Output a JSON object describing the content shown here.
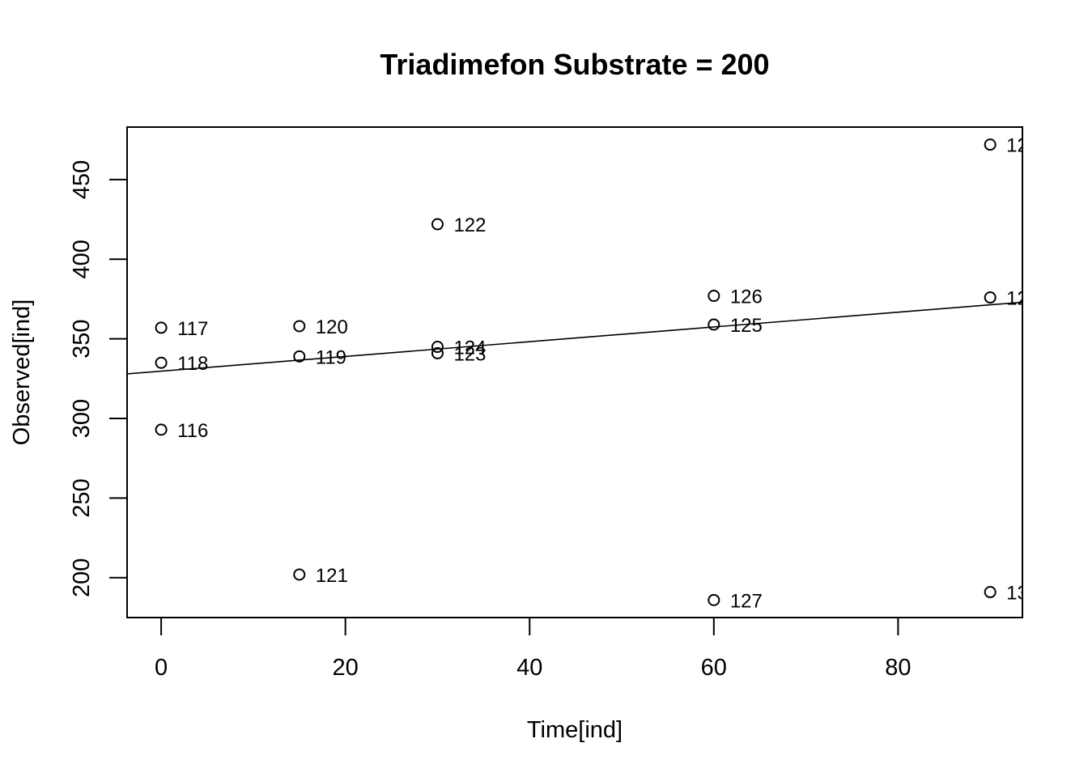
{
  "chart_data": {
    "type": "scatter",
    "title": "Triadimefon Substrate = 200",
    "xlabel": "Time[ind]",
    "ylabel": "Observed[ind]",
    "xlim": [
      -3.7,
      93.5
    ],
    "ylim": [
      175,
      483
    ],
    "xticks": [
      0,
      20,
      40,
      60,
      80
    ],
    "yticks": [
      200,
      250,
      300,
      350,
      400,
      450
    ],
    "grid": false,
    "points": [
      {
        "x": 0,
        "y": 357,
        "label": "117"
      },
      {
        "x": 0,
        "y": 335,
        "label": "118"
      },
      {
        "x": 0,
        "y": 293,
        "label": "116"
      },
      {
        "x": 15,
        "y": 358,
        "label": "120"
      },
      {
        "x": 15,
        "y": 339,
        "label": "119"
      },
      {
        "x": 15,
        "y": 202,
        "label": "121"
      },
      {
        "x": 30,
        "y": 422,
        "label": "122"
      },
      {
        "x": 30,
        "y": 345,
        "label": "124"
      },
      {
        "x": 30,
        "y": 341,
        "label": "123"
      },
      {
        "x": 60,
        "y": 377,
        "label": "126"
      },
      {
        "x": 60,
        "y": 359,
        "label": "125"
      },
      {
        "x": 60,
        "y": 186,
        "label": "127"
      },
      {
        "x": 90,
        "y": 472,
        "label": "12"
      },
      {
        "x": 90,
        "y": 376,
        "label": "12"
      },
      {
        "x": 90,
        "y": 191,
        "label": "13"
      }
    ],
    "fit_line": {
      "x": [
        -3.7,
        93.5
      ],
      "y": [
        328,
        373
      ]
    }
  }
}
